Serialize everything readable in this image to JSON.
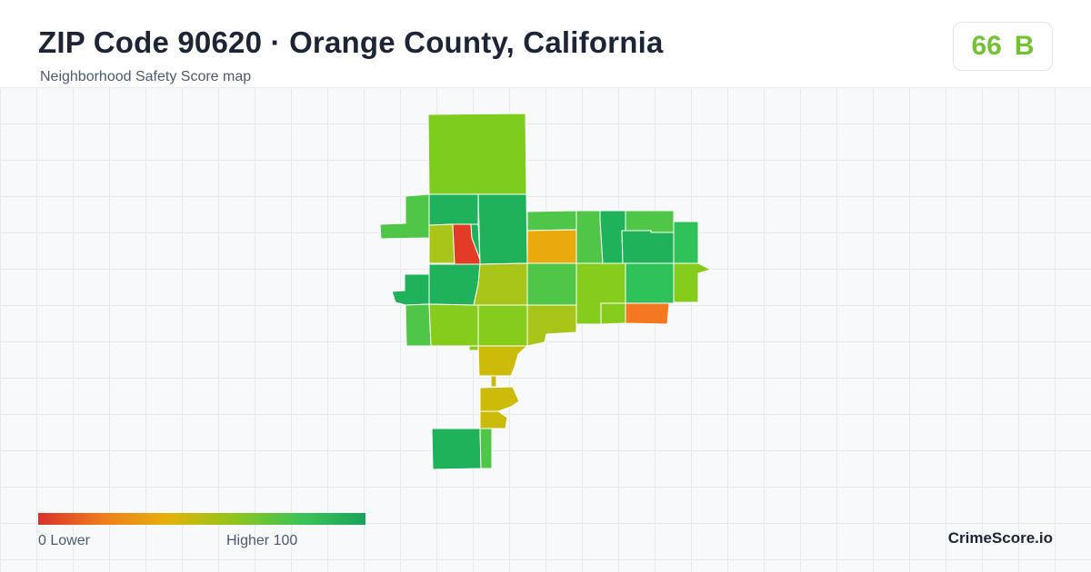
{
  "header": {
    "title": "ZIP Code 90620 · Orange County, California",
    "subtitle": "Neighborhood Safety Score map"
  },
  "score": {
    "value": "66",
    "grade": "B",
    "color": "#72c234"
  },
  "legend": {
    "low_label": "0  Lower",
    "high_label": "Higher  100",
    "colors": [
      "#d9322a",
      "#f07d1d",
      "#e3b20a",
      "#8ec51c",
      "#3cc456",
      "#1aa35a"
    ]
  },
  "brand": "CrimeScore.io",
  "map": {
    "type": "choropleth",
    "palette": {
      "red": "#e23b26",
      "orange": "#f47722",
      "amber": "#eaaa0e",
      "mustard": "#cdbb0a",
      "yellow_green": "#a9c51a",
      "light_green": "#85cc1d",
      "lime": "#7dcc1e",
      "green": "#4fc647",
      "bright_green": "#2fc25a",
      "dark_green": "#20b25a"
    }
  }
}
